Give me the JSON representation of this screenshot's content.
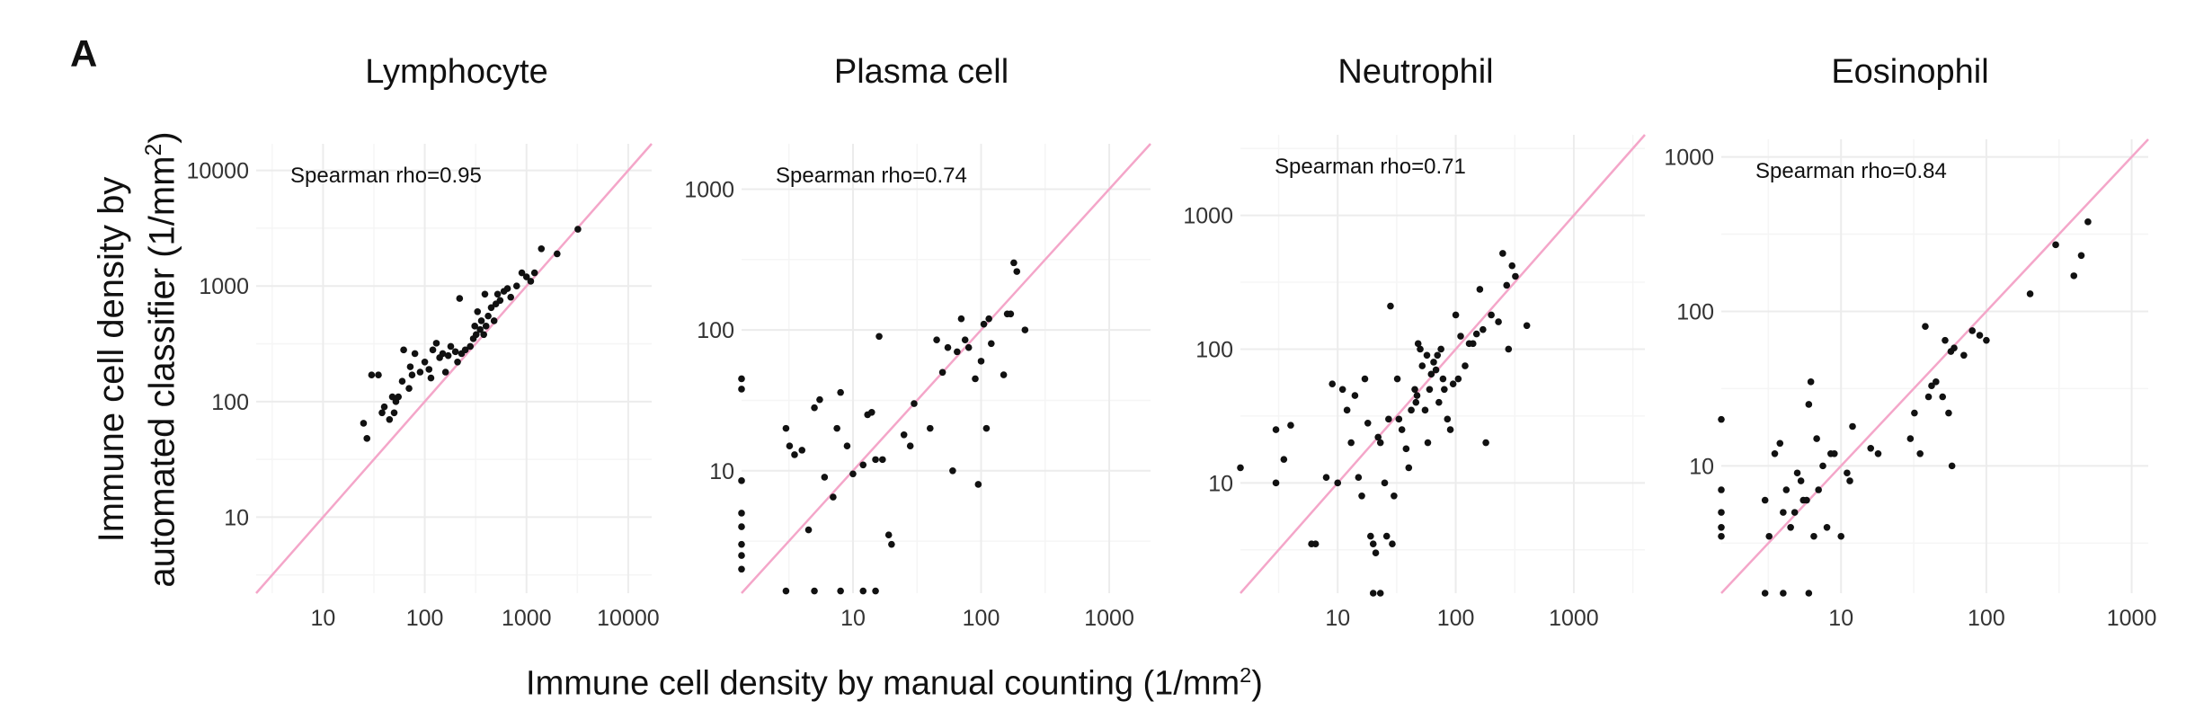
{
  "panel_letter": "A",
  "y_axis_label_line1": "Immune cell density by",
  "y_axis_label_line2": "automated classifier (1/mm",
  "y_axis_label_sup": "2",
  "y_axis_label_end": ")",
  "x_axis_label": "Immune cell density by manual counting (1/mm",
  "x_axis_label_sup": "2",
  "x_axis_label_end": ")",
  "colors": {
    "points": "#111111",
    "identity_line": "#f4a6c9",
    "grid": "#ececec",
    "text": "#111111"
  },
  "chart_data": [
    {
      "type": "scatter",
      "title": "Lymphocyte",
      "annotation": "Spearman rho=0.95",
      "scale": "log10",
      "xlim": [
        2.2,
        17000
      ],
      "ylim": [
        2.2,
        17000
      ],
      "x_ticks": [
        10,
        100,
        1000,
        10000
      ],
      "x_tick_labels": [
        "10",
        "100",
        "1000",
        "10000"
      ],
      "y_ticks": [
        10,
        100,
        1000,
        10000
      ],
      "y_tick_labels": [
        "10",
        "100",
        "1000",
        "10000"
      ],
      "identity_line": true,
      "points": [
        [
          25,
          65
        ],
        [
          27,
          48
        ],
        [
          30,
          170
        ],
        [
          35,
          170
        ],
        [
          38,
          80
        ],
        [
          40,
          90
        ],
        [
          45,
          70
        ],
        [
          48,
          110
        ],
        [
          50,
          80
        ],
        [
          52,
          100
        ],
        [
          55,
          110
        ],
        [
          60,
          150
        ],
        [
          62,
          280
        ],
        [
          70,
          130
        ],
        [
          72,
          200
        ],
        [
          75,
          170
        ],
        [
          80,
          260
        ],
        [
          90,
          180
        ],
        [
          100,
          220
        ],
        [
          110,
          190
        ],
        [
          115,
          160
        ],
        [
          120,
          280
        ],
        [
          130,
          320
        ],
        [
          140,
          240
        ],
        [
          150,
          260
        ],
        [
          160,
          180
        ],
        [
          170,
          250
        ],
        [
          180,
          300
        ],
        [
          200,
          270
        ],
        [
          210,
          220
        ],
        [
          220,
          780
        ],
        [
          230,
          260
        ],
        [
          250,
          280
        ],
        [
          280,
          300
        ],
        [
          300,
          350
        ],
        [
          310,
          450
        ],
        [
          320,
          380
        ],
        [
          330,
          600
        ],
        [
          350,
          420
        ],
        [
          360,
          500
        ],
        [
          380,
          380
        ],
        [
          390,
          850
        ],
        [
          400,
          450
        ],
        [
          420,
          550
        ],
        [
          450,
          650
        ],
        [
          480,
          500
        ],
        [
          500,
          700
        ],
        [
          520,
          850
        ],
        [
          550,
          750
        ],
        [
          600,
          900
        ],
        [
          650,
          950
        ],
        [
          700,
          800
        ],
        [
          800,
          1000
        ],
        [
          900,
          1300
        ],
        [
          1000,
          1200
        ],
        [
          1100,
          1100
        ],
        [
          1200,
          1300
        ],
        [
          1400,
          2100
        ],
        [
          2000,
          1900
        ],
        [
          3200,
          3100
        ]
      ]
    },
    {
      "type": "scatter",
      "title": "Plasma cell",
      "annotation": "Spearman rho=0.74",
      "scale": "log10",
      "xlim": [
        1.35,
        2100
      ],
      "ylim": [
        1.35,
        2100
      ],
      "x_ticks": [
        10,
        100,
        1000
      ],
      "x_tick_labels": [
        "10",
        "100",
        "1000"
      ],
      "y_ticks": [
        10,
        100,
        1000
      ],
      "y_tick_labels": [
        "10",
        "100",
        "1000"
      ],
      "identity_line": true,
      "points": [
        [
          1.35,
          45
        ],
        [
          1.35,
          38
        ],
        [
          1.35,
          8.5
        ],
        [
          1.35,
          5
        ],
        [
          1.35,
          4
        ],
        [
          1.35,
          3
        ],
        [
          1.35,
          2.5
        ],
        [
          1.35,
          2
        ],
        [
          3,
          20
        ],
        [
          3.2,
          15
        ],
        [
          3.5,
          13
        ],
        [
          4,
          14
        ],
        [
          4.5,
          3.8
        ],
        [
          5,
          28
        ],
        [
          5.5,
          32
        ],
        [
          6,
          9
        ],
        [
          7,
          6.5
        ],
        [
          7.5,
          20
        ],
        [
          8,
          36
        ],
        [
          9,
          15
        ],
        [
          10,
          9.5
        ],
        [
          12,
          11
        ],
        [
          13,
          25
        ],
        [
          14,
          26
        ],
        [
          15,
          12
        ],
        [
          16,
          90
        ],
        [
          17,
          12
        ],
        [
          19,
          3.5
        ],
        [
          20,
          3
        ],
        [
          25,
          18
        ],
        [
          28,
          15
        ],
        [
          30,
          30
        ],
        [
          40,
          20
        ],
        [
          45,
          85
        ],
        [
          50,
          50
        ],
        [
          55,
          75
        ],
        [
          60,
          10
        ],
        [
          65,
          70
        ],
        [
          70,
          120
        ],
        [
          75,
          85
        ],
        [
          80,
          75
        ],
        [
          90,
          45
        ],
        [
          95,
          8
        ],
        [
          100,
          60
        ],
        [
          105,
          110
        ],
        [
          110,
          20
        ],
        [
          115,
          120
        ],
        [
          120,
          80
        ],
        [
          150,
          48
        ],
        [
          160,
          130
        ],
        [
          170,
          130
        ],
        [
          180,
          300
        ],
        [
          190,
          260
        ],
        [
          220,
          100
        ],
        [
          3,
          1.4
        ],
        [
          5,
          1.4
        ],
        [
          8,
          1.4
        ],
        [
          12,
          1.4
        ],
        [
          15,
          1.4
        ]
      ]
    },
    {
      "type": "scatter",
      "title": "Neutrophil",
      "annotation": "Spearman rho=0.71",
      "scale": "log10",
      "xlim": [
        1.5,
        4000
      ],
      "ylim": [
        1.5,
        4000
      ],
      "x_ticks": [
        10,
        100,
        1000
      ],
      "x_tick_labels": [
        "10",
        "100",
        "1000"
      ],
      "y_ticks": [
        10,
        100,
        1000
      ],
      "y_tick_labels": [
        "10",
        "100",
        "1000"
      ],
      "identity_line": true,
      "points": [
        [
          1.5,
          13
        ],
        [
          3,
          25
        ],
        [
          3,
          10
        ],
        [
          3.5,
          15
        ],
        [
          4,
          27
        ],
        [
          6,
          3.5
        ],
        [
          6.5,
          3.5
        ],
        [
          8,
          11
        ],
        [
          9,
          55
        ],
        [
          10,
          10
        ],
        [
          11,
          50
        ],
        [
          12,
          35
        ],
        [
          13,
          20
        ],
        [
          14,
          45
        ],
        [
          15,
          11
        ],
        [
          16,
          8
        ],
        [
          17,
          60
        ],
        [
          18,
          28
        ],
        [
          19,
          4
        ],
        [
          20,
          3.5
        ],
        [
          21,
          3
        ],
        [
          22,
          22
        ],
        [
          23,
          20
        ],
        [
          25,
          10
        ],
        [
          26,
          4
        ],
        [
          27,
          30
        ],
        [
          28,
          210
        ],
        [
          29,
          3.5
        ],
        [
          30,
          8
        ],
        [
          32,
          60
        ],
        [
          33,
          30
        ],
        [
          35,
          25
        ],
        [
          38,
          18
        ],
        [
          40,
          13
        ],
        [
          42,
          35
        ],
        [
          45,
          50
        ],
        [
          46,
          40
        ],
        [
          47,
          45
        ],
        [
          48,
          110
        ],
        [
          50,
          100
        ],
        [
          52,
          75
        ],
        [
          55,
          35
        ],
        [
          57,
          90
        ],
        [
          58,
          20
        ],
        [
          60,
          50
        ],
        [
          62,
          65
        ],
        [
          65,
          80
        ],
        [
          68,
          70
        ],
        [
          70,
          90
        ],
        [
          72,
          40
        ],
        [
          75,
          100
        ],
        [
          78,
          60
        ],
        [
          80,
          50
        ],
        [
          85,
          30
        ],
        [
          90,
          25
        ],
        [
          95,
          55
        ],
        [
          100,
          180
        ],
        [
          105,
          60
        ],
        [
          110,
          125
        ],
        [
          120,
          75
        ],
        [
          130,
          110
        ],
        [
          140,
          110
        ],
        [
          150,
          130
        ],
        [
          160,
          280
        ],
        [
          170,
          140
        ],
        [
          180,
          20
        ],
        [
          200,
          180
        ],
        [
          230,
          160
        ],
        [
          250,
          520
        ],
        [
          270,
          300
        ],
        [
          280,
          100
        ],
        [
          300,
          420
        ],
        [
          320,
          350
        ],
        [
          400,
          150
        ],
        [
          20,
          1.5
        ],
        [
          23,
          1.5
        ]
      ]
    },
    {
      "type": "scatter",
      "title": "Eosinophil",
      "annotation": "Spearman rho=0.84",
      "scale": "log10",
      "xlim": [
        1.5,
        1300
      ],
      "ylim": [
        1.5,
        1300
      ],
      "x_ticks": [
        10,
        100,
        1000
      ],
      "x_tick_labels": [
        "10",
        "100",
        "1000"
      ],
      "y_ticks": [
        10,
        100,
        1000
      ],
      "y_tick_labels": [
        "10",
        "100",
        "1000"
      ],
      "identity_line": true,
      "points": [
        [
          1.5,
          20
        ],
        [
          1.5,
          7
        ],
        [
          1.5,
          5
        ],
        [
          1.5,
          4
        ],
        [
          1.5,
          3.5
        ],
        [
          3,
          6
        ],
        [
          3.2,
          3.5
        ],
        [
          3.5,
          12
        ],
        [
          3.8,
          14
        ],
        [
          4,
          5
        ],
        [
          4.2,
          7
        ],
        [
          4.5,
          4
        ],
        [
          4.8,
          5
        ],
        [
          5,
          9
        ],
        [
          5.3,
          8
        ],
        [
          5.5,
          6
        ],
        [
          5.8,
          6
        ],
        [
          6,
          25
        ],
        [
          6.2,
          35
        ],
        [
          6.5,
          3.5
        ],
        [
          6.8,
          15
        ],
        [
          7,
          7
        ],
        [
          7.5,
          10
        ],
        [
          8,
          4
        ],
        [
          8.5,
          12
        ],
        [
          9,
          12
        ],
        [
          10,
          3.5
        ],
        [
          11,
          9
        ],
        [
          11.5,
          8
        ],
        [
          12,
          18
        ],
        [
          16,
          13
        ],
        [
          18,
          12
        ],
        [
          30,
          15
        ],
        [
          32,
          22
        ],
        [
          35,
          12
        ],
        [
          38,
          80
        ],
        [
          40,
          28
        ],
        [
          42,
          33
        ],
        [
          45,
          35
        ],
        [
          50,
          28
        ],
        [
          52,
          65
        ],
        [
          55,
          22
        ],
        [
          57,
          55
        ],
        [
          58,
          10
        ],
        [
          60,
          58
        ],
        [
          70,
          52
        ],
        [
          80,
          75
        ],
        [
          90,
          70
        ],
        [
          100,
          65
        ],
        [
          200,
          130
        ],
        [
          300,
          270
        ],
        [
          400,
          170
        ],
        [
          450,
          230
        ],
        [
          500,
          380
        ],
        [
          3,
          1.5
        ],
        [
          4,
          1.5
        ],
        [
          6,
          1.5
        ]
      ]
    }
  ]
}
